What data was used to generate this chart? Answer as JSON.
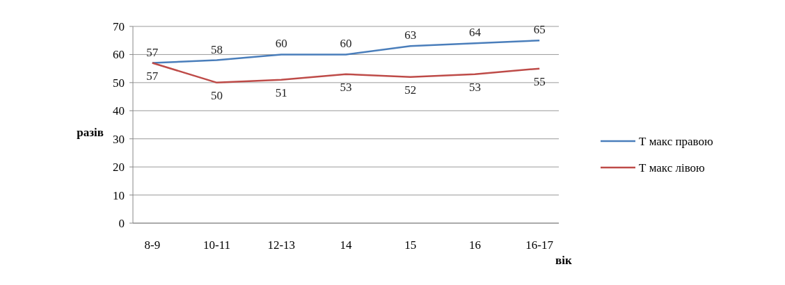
{
  "chart_data": {
    "type": "line",
    "xlabel": "вік",
    "ylabel": "разів",
    "categories": [
      "8-9",
      "10-11",
      "12-13",
      "14",
      "15",
      "16",
      "16-17"
    ],
    "series": [
      {
        "name": "Т макс правою",
        "color": "#4a7ebb",
        "values": [
          57,
          58,
          60,
          60,
          63,
          64,
          65
        ]
      },
      {
        "name": "Т макс лівою",
        "color": "#be4b48",
        "values": [
          57,
          50,
          51,
          53,
          52,
          53,
          55
        ]
      }
    ],
    "ylim": [
      0,
      70
    ],
    "yticks": [
      0,
      10,
      20,
      30,
      40,
      50,
      60,
      70
    ],
    "grid": "y",
    "legend": "right",
    "data_labels": true,
    "marker": "none",
    "line_style": "solid"
  }
}
